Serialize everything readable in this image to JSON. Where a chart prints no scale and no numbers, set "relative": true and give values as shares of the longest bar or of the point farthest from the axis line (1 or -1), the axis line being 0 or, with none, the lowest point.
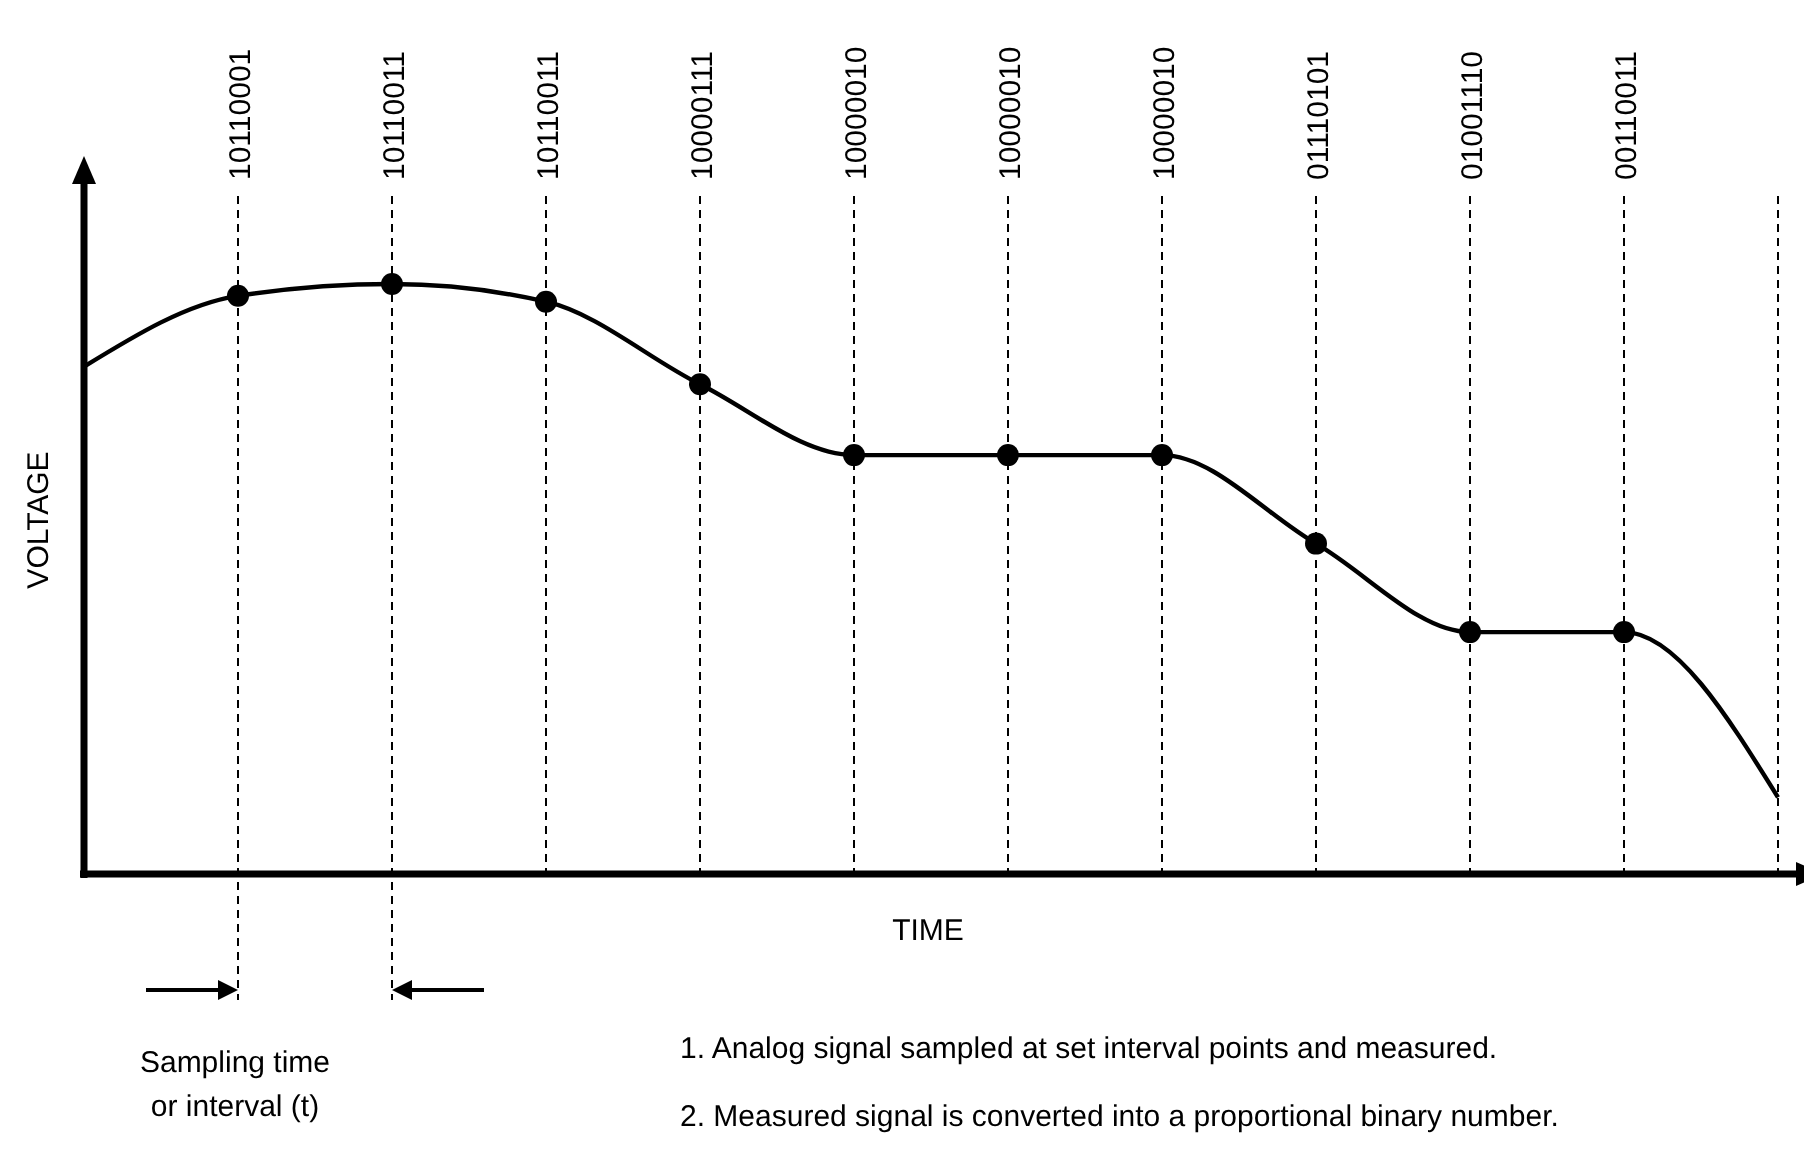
{
  "chart_data": {
    "type": "line",
    "xlabel": "TIME",
    "ylabel": "VOLTAGE",
    "relative": true,
    "grid": "x",
    "categories": [
      null,
      "10110001",
      "10110011",
      "10110011",
      "10000111",
      "10000010",
      "10000010",
      "10000010",
      "01110101",
      "01001110",
      "00110011",
      null
    ],
    "series": [
      {
        "type": "line",
        "color": "#000000",
        "marker": "none",
        "line_style": "solid",
        "values": [
          0.86,
          0.98,
          1.0,
          0.97,
          0.83,
          0.71,
          0.71,
          0.71,
          0.56,
          0.41,
          0.41,
          0.13
        ]
      },
      {
        "type": "scatter",
        "color": "#000000",
        "marker": "circle",
        "values": [
          null,
          0.98,
          1.0,
          0.97,
          0.83,
          0.71,
          0.71,
          0.71,
          0.56,
          0.41,
          0.41,
          null
        ]
      }
    ],
    "annotations": [
      "Sampling time or interval (t)",
      "1. Analog signal sampled at set interval points and measured.",
      "2. Measured signal is converted into a proportional binary number."
    ]
  }
}
